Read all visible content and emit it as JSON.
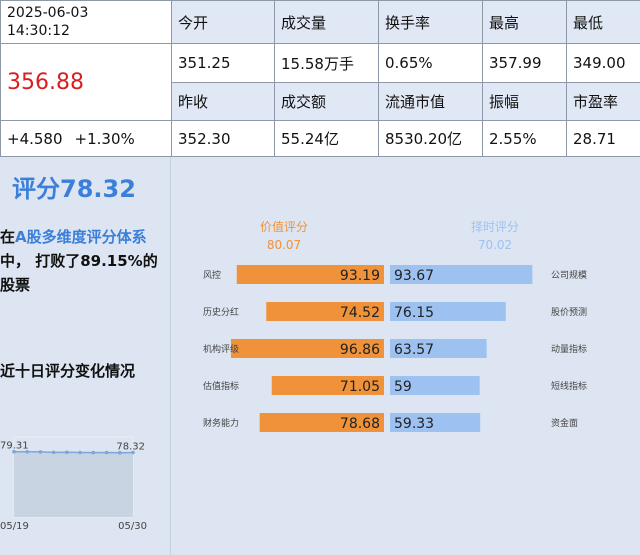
{
  "quote": {
    "date": "2025-06-03",
    "time": "14:30:12",
    "price": "356.88",
    "change": "+4.580",
    "change_pct": "+1.30%",
    "row1_headers": [
      "今开",
      "成交量",
      "换手率",
      "最高",
      "最低"
    ],
    "row1_values": [
      "351.25",
      "15.58万手",
      "0.65%",
      "357.99",
      "349.00"
    ],
    "row2_headers": [
      "昨收",
      "成交额",
      "流通市值",
      "振幅",
      "市盈率"
    ],
    "row2_values": [
      "352.30",
      "55.24亿",
      "8530.20亿",
      "2.55%",
      "28.71"
    ]
  },
  "score": {
    "title": "评分78.32",
    "desc_prefix": "在",
    "desc_highlight": "A股多维度评分体系",
    "desc_suffix": "中， 打败了89.15%的股票"
  },
  "trend": {
    "title": "近十日评分变化情况",
    "start_label": "79.31",
    "end_label": "78.32",
    "start_date": "05/19",
    "end_date": "05/30",
    "y_range": [
      0,
      85
    ],
    "values": [
      79.31,
      79.2,
      79.0,
      78.4,
      78.6,
      78.3,
      78.2,
      78.3,
      78.1,
      78.32
    ]
  },
  "value_score": {
    "title": "价值评分",
    "value": "80.07",
    "color": "#f0923a",
    "items": [
      {
        "label": "风控",
        "score": 93.19
      },
      {
        "label": "历史分红",
        "score": 74.52
      },
      {
        "label": "机构评级",
        "score": 96.86
      },
      {
        "label": "估值指标",
        "score": 71.05
      },
      {
        "label": "财务能力",
        "score": 78.68
      }
    ]
  },
  "timing_score": {
    "title": "择时评分",
    "value": "70.02",
    "color": "#9dc2f2",
    "items": [
      {
        "label": "公司规模",
        "score": 93.67,
        "text": "93.67"
      },
      {
        "label": "股价预测",
        "score": 76.15,
        "text": "76.15"
      },
      {
        "label": "动量指标",
        "score": 63.57,
        "text": "63.57"
      },
      {
        "label": "短线指标",
        "score": 59,
        "text": "59"
      },
      {
        "label": "资金面",
        "score": 59.33,
        "text": "59.33"
      }
    ]
  }
}
